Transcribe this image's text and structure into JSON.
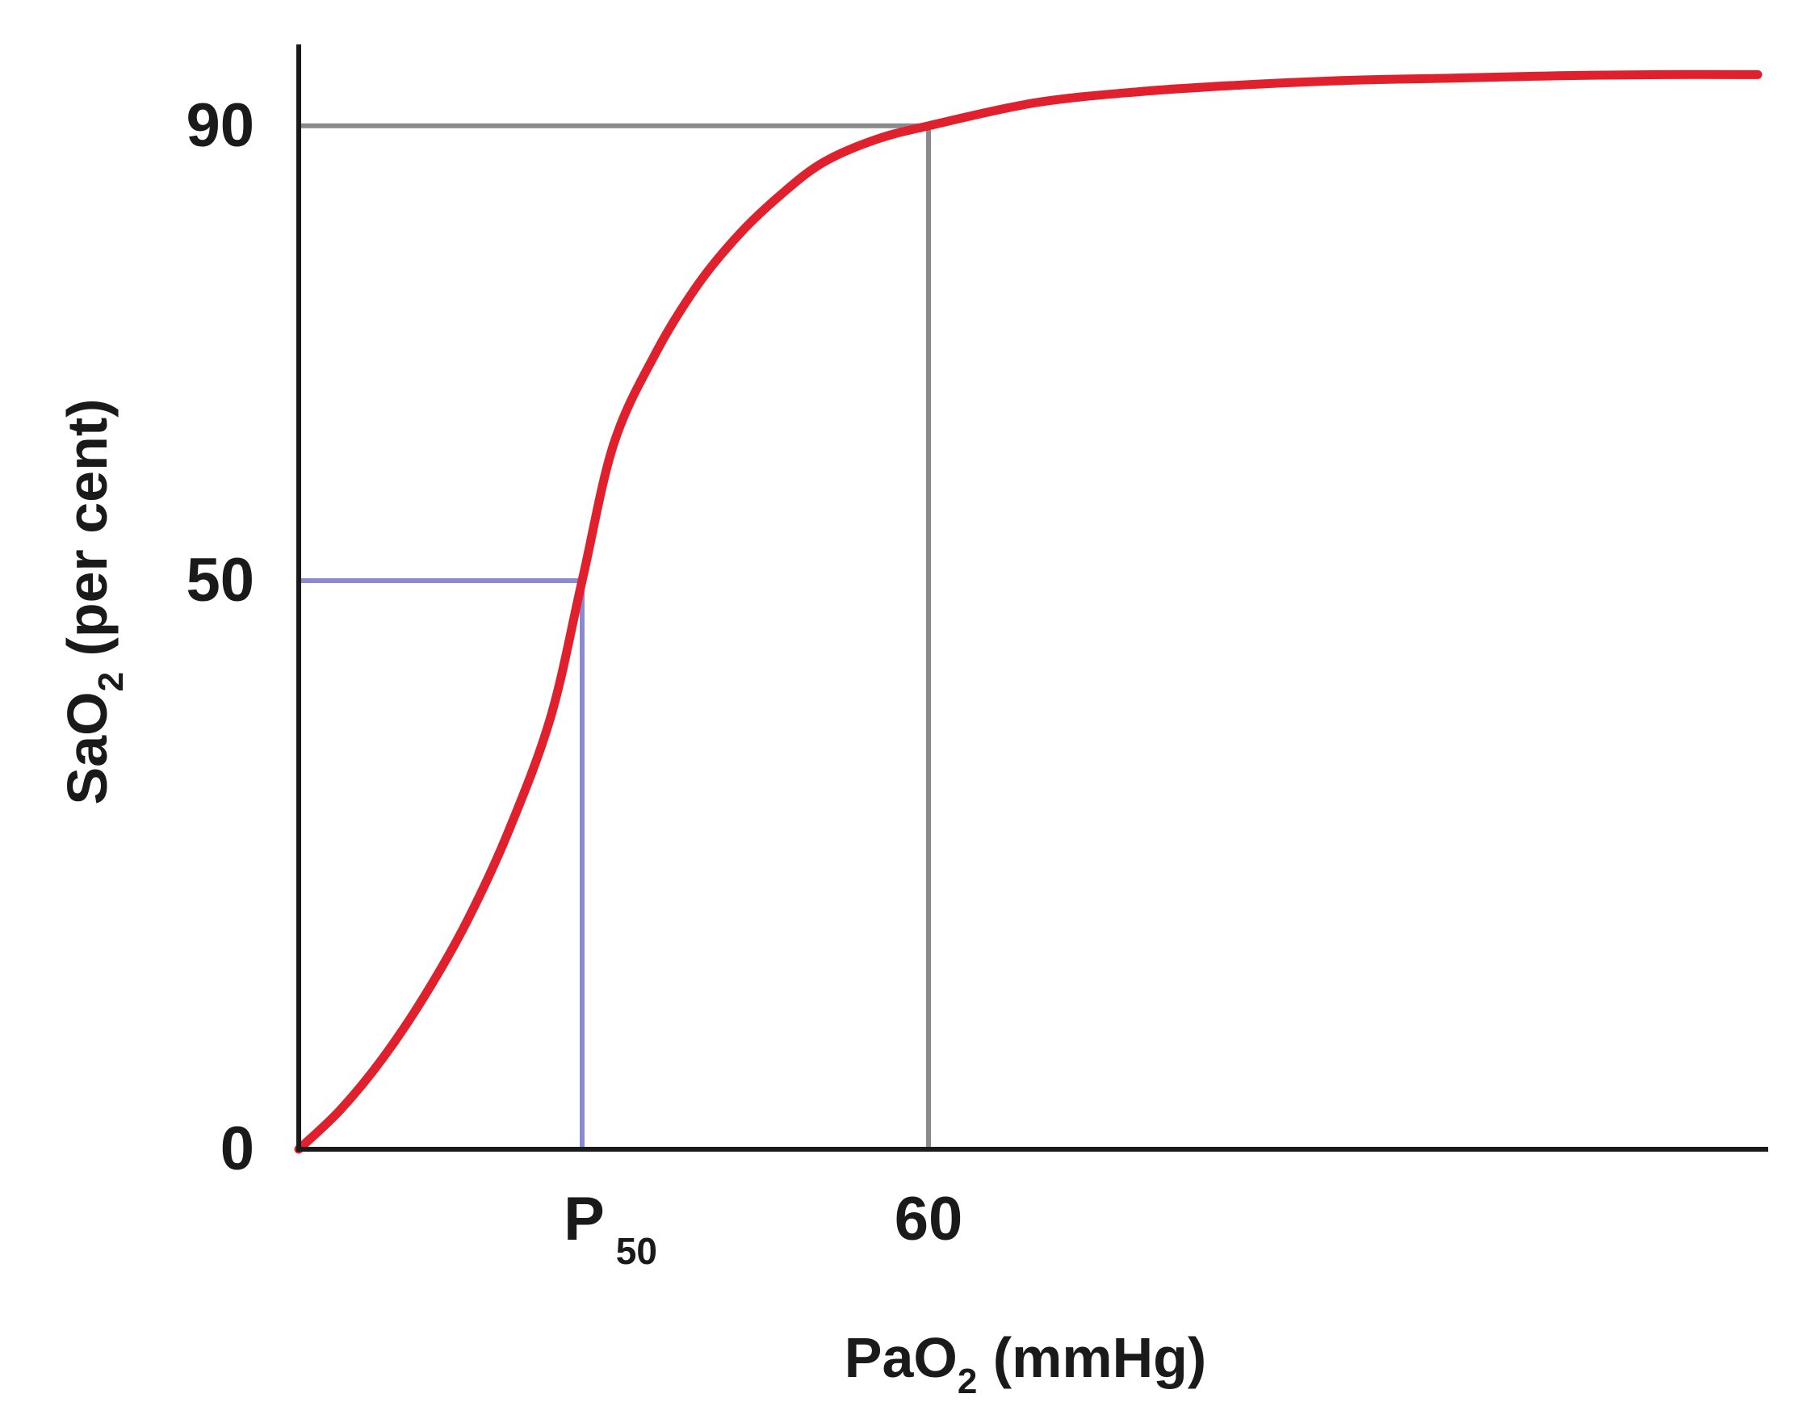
{
  "chart_data": {
    "type": "line",
    "xlabel": {
      "main": "PaO",
      "sub": "2",
      "rest": " (mmHg)"
    },
    "ylabel": {
      "main": "SaO",
      "sub": "2",
      "rest": " (per cent)"
    },
    "x_ticks": [
      {
        "value": 27,
        "main": "P",
        "sub": "50"
      },
      {
        "value": 60,
        "main": "60",
        "sub": ""
      }
    ],
    "y_ticks": [
      {
        "value": 0,
        "label": "0"
      },
      {
        "value": 50,
        "label": "50"
      },
      {
        "value": 90,
        "label": "90"
      }
    ],
    "xlim": [
      0,
      140
    ],
    "ylim": [
      0,
      100
    ],
    "grid": false,
    "reference_lines": [
      {
        "name": "p50-reference",
        "x": 27,
        "y": 50,
        "color": "#8c89cc"
      },
      {
        "name": "sat90-reference",
        "x": 60,
        "y": 90,
        "color": "#8a8a8a"
      }
    ],
    "series": [
      {
        "color": "#e0202c",
        "x": [
          0,
          4,
          8,
          12,
          16,
          20,
          24,
          27,
          30,
          34,
          38,
          42,
          46,
          50,
          55,
          60,
          70,
          80,
          90,
          100,
          110,
          120,
          130,
          139
        ],
        "y": [
          0,
          3.5,
          8,
          13.5,
          20,
          28,
          38,
          50,
          62,
          70,
          76,
          80.5,
          84,
          86.8,
          88.8,
          90,
          92,
          93,
          93.6,
          94,
          94.2,
          94.4,
          94.5,
          94.5
        ]
      }
    ]
  }
}
